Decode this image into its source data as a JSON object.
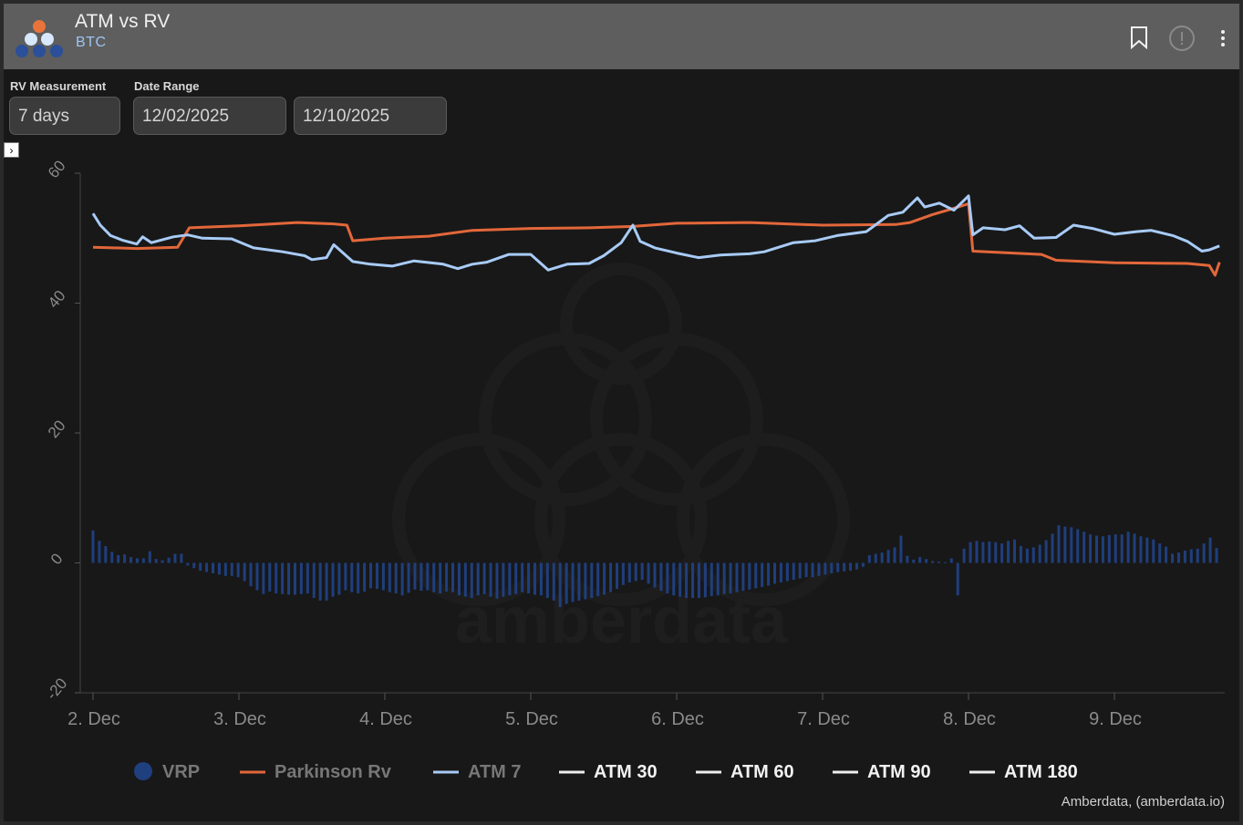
{
  "header": {
    "title": "ATM vs RV",
    "subtitle": "BTC",
    "icons": [
      "bookmark-icon",
      "info-icon",
      "more-vertical-icon"
    ]
  },
  "controls": {
    "rv_label": "RV Measurement",
    "rv_value": "7 days",
    "date_label": "Date Range",
    "date_from": "12/02/2025",
    "date_to": "12/10/2025"
  },
  "colors": {
    "vrp": "#1f3f7e",
    "parkinson": "#e2673a",
    "atm7": "#a8cbf6",
    "atm_other": "#eeeeee"
  },
  "credit": "Amberdata, (amberdata.io)",
  "watermark": "amberdata",
  "chart_data": {
    "type": "line",
    "title": "ATM vs RV",
    "xlabel": "",
    "ylabel": "",
    "ylim": [
      -20,
      60
    ],
    "yticks": [
      "60",
      "40",
      "20",
      "0",
      "-20"
    ],
    "xrange_days": [
      2,
      9.7
    ],
    "xticks": [
      "2. Dec",
      "3. Dec",
      "4. Dec",
      "5. Dec",
      "6. Dec",
      "7. Dec",
      "8. Dec",
      "9. Dec"
    ],
    "legend": [
      "VRP",
      "Parkinson Rv",
      "ATM 7",
      "ATM 30",
      "ATM 60",
      "ATM 90",
      "ATM 180"
    ],
    "legend_position": "bottom",
    "series": [
      {
        "name": "Parkinson Rv",
        "kind": "line",
        "points": [
          [
            2.0,
            48.6
          ],
          [
            2.3,
            48.4
          ],
          [
            2.58,
            48.6
          ],
          [
            2.66,
            51.6
          ],
          [
            3.0,
            51.9
          ],
          [
            3.4,
            52.4
          ],
          [
            3.65,
            52.2
          ],
          [
            3.74,
            52.0
          ],
          [
            3.78,
            49.6
          ],
          [
            4.0,
            50.0
          ],
          [
            4.3,
            50.3
          ],
          [
            4.6,
            51.2
          ],
          [
            5.0,
            51.5
          ],
          [
            5.4,
            51.6
          ],
          [
            5.7,
            51.8
          ],
          [
            6.0,
            52.3
          ],
          [
            6.5,
            52.4
          ],
          [
            7.0,
            52.0
          ],
          [
            7.5,
            52.1
          ],
          [
            7.6,
            52.4
          ],
          [
            7.75,
            53.6
          ],
          [
            7.9,
            54.6
          ],
          [
            8.0,
            55.3
          ],
          [
            8.03,
            48.0
          ],
          [
            8.5,
            47.5
          ],
          [
            8.6,
            46.6
          ],
          [
            9.0,
            46.2
          ],
          [
            9.5,
            46.1
          ],
          [
            9.65,
            45.8
          ],
          [
            9.69,
            44.3
          ],
          [
            9.72,
            46.3
          ]
        ]
      },
      {
        "name": "ATM 7",
        "kind": "line",
        "points": [
          [
            2.0,
            53.8
          ],
          [
            2.05,
            52.0
          ],
          [
            2.12,
            50.4
          ],
          [
            2.2,
            49.7
          ],
          [
            2.3,
            49.1
          ],
          [
            2.34,
            50.2
          ],
          [
            2.4,
            49.3
          ],
          [
            2.55,
            50.2
          ],
          [
            2.65,
            50.5
          ],
          [
            2.75,
            50.0
          ],
          [
            2.95,
            49.9
          ],
          [
            3.1,
            48.5
          ],
          [
            3.3,
            47.9
          ],
          [
            3.45,
            47.3
          ],
          [
            3.5,
            46.7
          ],
          [
            3.6,
            47.0
          ],
          [
            3.65,
            49.0
          ],
          [
            3.78,
            46.4
          ],
          [
            3.9,
            46.0
          ],
          [
            4.05,
            45.7
          ],
          [
            4.2,
            46.5
          ],
          [
            4.4,
            46.0
          ],
          [
            4.5,
            45.3
          ],
          [
            4.6,
            46.0
          ],
          [
            4.7,
            46.3
          ],
          [
            4.85,
            47.5
          ],
          [
            5.0,
            47.5
          ],
          [
            5.12,
            45.1
          ],
          [
            5.25,
            46.0
          ],
          [
            5.4,
            46.1
          ],
          [
            5.5,
            47.3
          ],
          [
            5.62,
            49.3
          ],
          [
            5.7,
            52.0
          ],
          [
            5.75,
            49.5
          ],
          [
            5.85,
            48.5
          ],
          [
            6.0,
            47.7
          ],
          [
            6.15,
            47.0
          ],
          [
            6.3,
            47.4
          ],
          [
            6.5,
            47.6
          ],
          [
            6.6,
            47.9
          ],
          [
            6.8,
            49.3
          ],
          [
            6.95,
            49.6
          ],
          [
            7.1,
            50.4
          ],
          [
            7.3,
            51.0
          ],
          [
            7.45,
            53.5
          ],
          [
            7.55,
            54.0
          ],
          [
            7.65,
            56.2
          ],
          [
            7.7,
            54.8
          ],
          [
            7.8,
            55.4
          ],
          [
            7.9,
            54.3
          ],
          [
            8.0,
            56.5
          ],
          [
            8.03,
            50.5
          ],
          [
            8.1,
            51.6
          ],
          [
            8.25,
            51.3
          ],
          [
            8.35,
            51.9
          ],
          [
            8.45,
            50.0
          ],
          [
            8.6,
            50.1
          ],
          [
            8.72,
            52.0
          ],
          [
            8.85,
            51.5
          ],
          [
            9.0,
            50.6
          ],
          [
            9.15,
            51.0
          ],
          [
            9.25,
            51.2
          ],
          [
            9.4,
            50.4
          ],
          [
            9.5,
            49.5
          ],
          [
            9.6,
            48.0
          ],
          [
            9.65,
            48.2
          ],
          [
            9.72,
            48.8
          ]
        ]
      },
      {
        "name": "VRP",
        "kind": "bar",
        "values": [
          5.0,
          3.4,
          2.6,
          1.7,
          1.2,
          1.3,
          0.9,
          0.7,
          0.7,
          1.8,
          0.6,
          0.4,
          0.8,
          1.4,
          1.4,
          -0.4,
          -0.8,
          -1.2,
          -1.4,
          -1.6,
          -1.8,
          -2.0,
          -2.0,
          -2.2,
          -2.8,
          -3.6,
          -4.2,
          -4.8,
          -4.4,
          -4.7,
          -4.8,
          -4.9,
          -4.9,
          -4.8,
          -4.7,
          -5.4,
          -5.8,
          -5.8,
          -5.2,
          -4.9,
          -4.2,
          -4.5,
          -4.7,
          -4.4,
          -3.9,
          -4.0,
          -4.2,
          -4.5,
          -4.7,
          -5.0,
          -4.6,
          -4.1,
          -4.3,
          -4.2,
          -4.5,
          -4.7,
          -4.4,
          -4.5,
          -5.0,
          -5.2,
          -5.4,
          -5.0,
          -4.8,
          -5.2,
          -5.5,
          -5.2,
          -5.0,
          -4.8,
          -4.5,
          -4.7,
          -4.9,
          -5.0,
          -5.4,
          -5.8,
          -6.8,
          -6.3,
          -6.0,
          -5.8,
          -5.6,
          -5.4,
          -5.1,
          -4.9,
          -4.5,
          -4.0,
          -3.4,
          -3.0,
          -2.8,
          -2.6,
          -3.2,
          -3.8,
          -4.3,
          -4.7,
          -5.0,
          -5.2,
          -5.4,
          -5.4,
          -5.4,
          -5.3,
          -5.1,
          -5.0,
          -4.8,
          -4.7,
          -4.5,
          -4.3,
          -4.1,
          -3.9,
          -3.7,
          -3.5,
          -3.2,
          -3.0,
          -2.8,
          -2.6,
          -2.4,
          -2.2,
          -2.2,
          -2.0,
          -1.8,
          -1.6,
          -1.4,
          -1.3,
          -1.2,
          -1.0,
          -0.6,
          1.2,
          1.4,
          1.6,
          2.0,
          2.4,
          4.2,
          1.1,
          0.5,
          0.9,
          0.6,
          0.3,
          0.2,
          0.1,
          0.7,
          -5.0,
          2.2,
          3.2,
          3.4,
          3.2,
          3.3,
          3.2,
          3.0,
          3.4,
          3.6,
          2.6,
          2.2,
          2.4,
          2.8,
          3.5,
          4.5,
          5.8,
          5.6,
          5.5,
          5.2,
          4.8,
          4.4,
          4.2,
          4.1,
          4.3,
          4.4,
          4.4,
          4.8,
          4.5,
          4.1,
          3.9,
          3.6,
          3.0,
          2.5,
          1.4,
          1.6,
          1.9,
          2.1,
          2.2,
          3.0,
          3.9,
          2.3
        ]
      },
      {
        "name": "ATM 30",
        "kind": "line",
        "points": []
      },
      {
        "name": "ATM 60",
        "kind": "line",
        "points": []
      },
      {
        "name": "ATM 90",
        "kind": "line",
        "points": []
      },
      {
        "name": "ATM 180",
        "kind": "line",
        "points": []
      }
    ]
  }
}
